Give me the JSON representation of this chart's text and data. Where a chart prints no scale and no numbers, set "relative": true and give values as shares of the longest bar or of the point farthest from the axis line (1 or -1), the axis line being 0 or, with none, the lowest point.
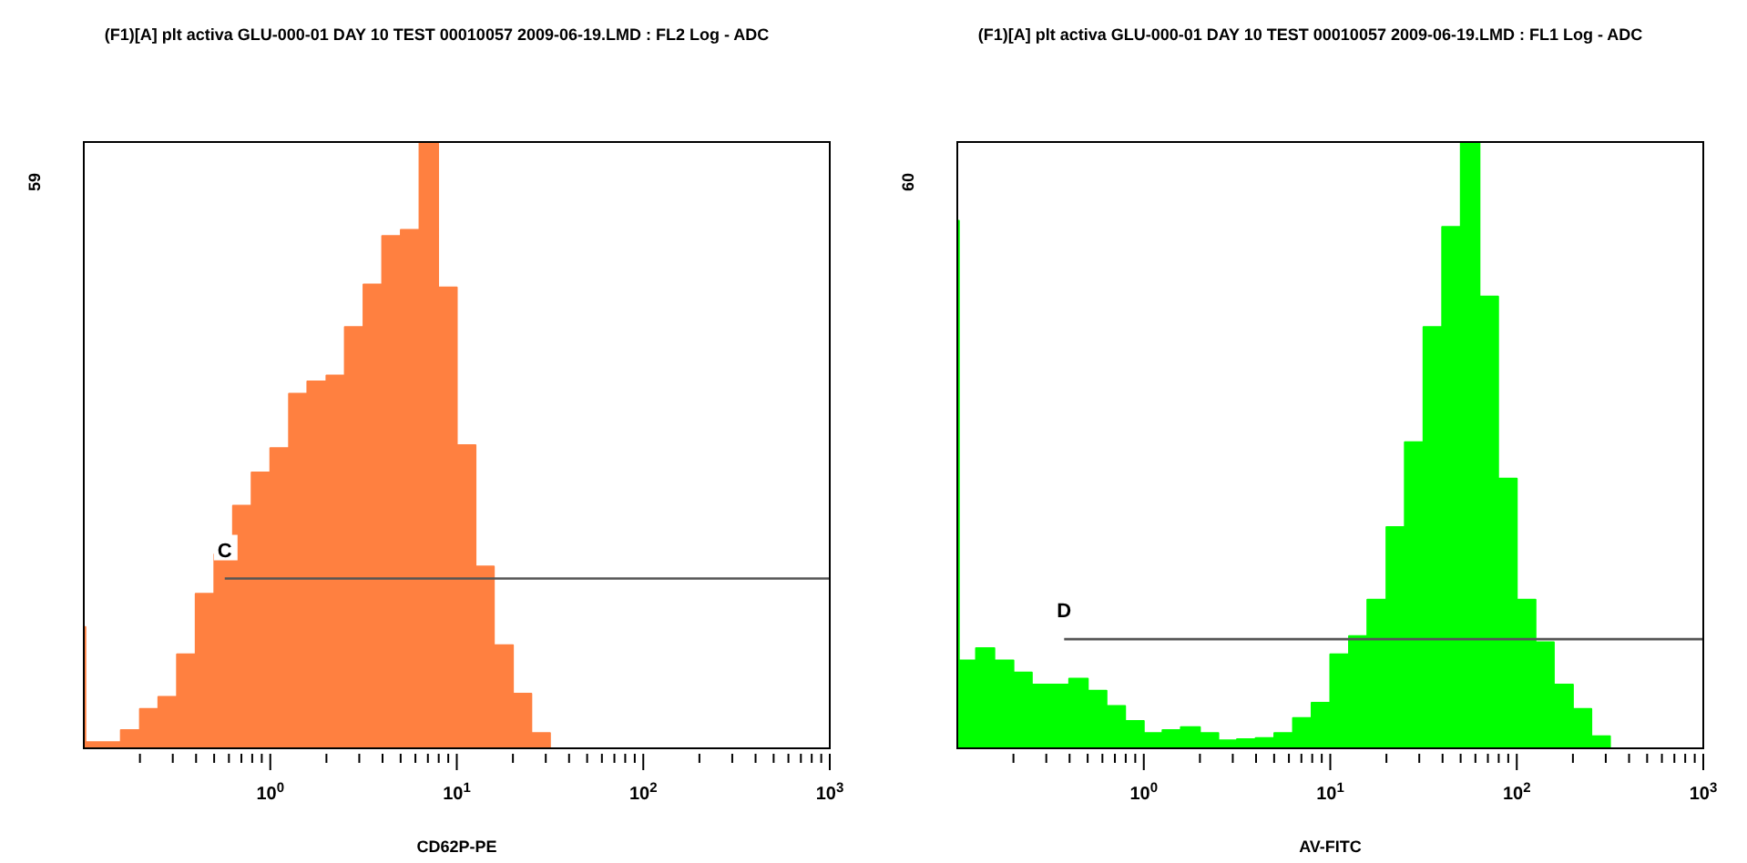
{
  "chart_data": [
    {
      "type": "area",
      "title": "(F1)[A] plt activa GLU-000-01 DAY 10 TEST 00010057 2009-06-19.LMD : FL2 Log - ADC",
      "xlabel": "CD62P-PE",
      "ylabel": "59",
      "relative": true,
      "log": "x",
      "series": [
        {
          "color": "#ff8040",
          "x": [
            0.1,
            0.102,
            0.126,
            0.158,
            0.2,
            0.251,
            0.316,
            0.398,
            0.501,
            0.631,
            0.794,
            1,
            1.26,
            1.58,
            2,
            2.51,
            3.16,
            3.98,
            5.01,
            6.31,
            7.94,
            10,
            12.6,
            15.8,
            20,
            25.1,
            31.6
          ],
          "values": [
            0.2,
            0.01,
            0.01,
            0.03,
            0.065,
            0.085,
            0.155,
            0.255,
            0.32,
            0.4,
            0.455,
            0.495,
            0.585,
            0.605,
            0.615,
            0.695,
            0.765,
            0.845,
            0.855,
            1.0,
            0.76,
            0.5,
            0.3,
            0.17,
            0.09,
            0.025,
            0
          ]
        },
        {
          "type": "line",
          "name": "C",
          "color": "#555555",
          "x": [
            0.57,
            1000
          ],
          "values": [
            0.28,
            0.28
          ]
        }
      ],
      "xlim": [
        0.1,
        1000
      ],
      "xticks": [
        {
          "value": 0.2,
          "label": null
        },
        {
          "value": 0.3,
          "label": null
        },
        {
          "value": 0.4,
          "label": null
        },
        {
          "value": 0.5,
          "label": null
        },
        {
          "value": 0.6,
          "label": null
        },
        {
          "value": 0.7,
          "label": null
        },
        {
          "value": 0.8,
          "label": null
        },
        {
          "value": 0.9,
          "label": null
        },
        {
          "value": 1,
          "label": "10$^{0}$"
        },
        {
          "value": 2,
          "label": null
        },
        {
          "value": 3,
          "label": null
        },
        {
          "value": 4,
          "label": null
        },
        {
          "value": 5,
          "label": null
        },
        {
          "value": 6,
          "label": null
        },
        {
          "value": 7,
          "label": null
        },
        {
          "value": 8,
          "label": null
        },
        {
          "value": 9,
          "label": null
        },
        {
          "value": 10,
          "label": "10$^{1}$"
        },
        {
          "value": 20,
          "label": null
        },
        {
          "value": 30,
          "label": null
        },
        {
          "value": 40,
          "label": null
        },
        {
          "value": 50,
          "label": null
        },
        {
          "value": 60,
          "label": null
        },
        {
          "value": 70,
          "label": null
        },
        {
          "value": 80,
          "label": null
        },
        {
          "value": 90,
          "label": null
        },
        {
          "value": 100,
          "label": "10$^{2}$"
        },
        {
          "value": 200,
          "label": null
        },
        {
          "value": 300,
          "label": null
        },
        {
          "value": 400,
          "label": null
        },
        {
          "value": 500,
          "label": null
        },
        {
          "value": 600,
          "label": null
        },
        {
          "value": 700,
          "label": null
        },
        {
          "value": 800,
          "label": null
        },
        {
          "value": 900,
          "label": null
        },
        {
          "value": 1000,
          "label": "10$^{3}$"
        }
      ]
    },
    {
      "type": "area",
      "title": "(F1)[A] plt activa GLU-000-01 DAY 10 TEST 00010057 2009-06-19.LMD : FL1 Log - ADC",
      "xlabel": "AV-FITC",
      "ylabel": "60",
      "relative": true,
      "log": "x",
      "series": [
        {
          "color": "#00ff00",
          "x": [
            0.1,
            0.102,
            0.126,
            0.158,
            0.2,
            0.251,
            0.316,
            0.398,
            0.501,
            0.631,
            0.794,
            1,
            1.26,
            1.58,
            2,
            2.51,
            3.16,
            3.98,
            5.01,
            6.31,
            7.94,
            10,
            12.6,
            15.8,
            20,
            25.1,
            31.6,
            39.8,
            50.1,
            63.1,
            79.4,
            100,
            126,
            158,
            200,
            251,
            316
          ],
          "values": [
            0.87,
            0.145,
            0.165,
            0.145,
            0.125,
            0.105,
            0.105,
            0.115,
            0.095,
            0.07,
            0.045,
            0.025,
            0.03,
            0.035,
            0.025,
            0.013,
            0.015,
            0.017,
            0.025,
            0.05,
            0.075,
            0.155,
            0.185,
            0.245,
            0.365,
            0.505,
            0.695,
            0.86,
            1.0,
            0.745,
            0.445,
            0.245,
            0.175,
            0.105,
            0.065,
            0.02,
            0
          ]
        },
        {
          "type": "line",
          "name": "D",
          "color": "#555555",
          "x": [
            0.374,
            1000
          ],
          "values": [
            0.18,
            0.18
          ]
        }
      ],
      "xlim": [
        0.1,
        1000
      ],
      "xticks": [
        {
          "value": 0.2,
          "label": null
        },
        {
          "value": 0.3,
          "label": null
        },
        {
          "value": 0.4,
          "label": null
        },
        {
          "value": 0.5,
          "label": null
        },
        {
          "value": 0.6,
          "label": null
        },
        {
          "value": 0.7,
          "label": null
        },
        {
          "value": 0.8,
          "label": null
        },
        {
          "value": 0.9,
          "label": null
        },
        {
          "value": 1,
          "label": "10$^{0}$"
        },
        {
          "value": 2,
          "label": null
        },
        {
          "value": 3,
          "label": null
        },
        {
          "value": 4,
          "label": null
        },
        {
          "value": 5,
          "label": null
        },
        {
          "value": 6,
          "label": null
        },
        {
          "value": 7,
          "label": null
        },
        {
          "value": 8,
          "label": null
        },
        {
          "value": 9,
          "label": null
        },
        {
          "value": 10,
          "label": "10$^{1}$"
        },
        {
          "value": 20,
          "label": null
        },
        {
          "value": 30,
          "label": null
        },
        {
          "value": 40,
          "label": null
        },
        {
          "value": 50,
          "label": null
        },
        {
          "value": 60,
          "label": null
        },
        {
          "value": 70,
          "label": null
        },
        {
          "value": 80,
          "label": null
        },
        {
          "value": 90,
          "label": null
        },
        {
          "value": 100,
          "label": "10$^{2}$"
        },
        {
          "value": 200,
          "label": null
        },
        {
          "value": 300,
          "label": null
        },
        {
          "value": 400,
          "label": null
        },
        {
          "value": 500,
          "label": null
        },
        {
          "value": 600,
          "label": null
        },
        {
          "value": 700,
          "label": null
        },
        {
          "value": 800,
          "label": null
        },
        {
          "value": 900,
          "label": null
        },
        {
          "value": 1000,
          "label": "10$^{3}$"
        }
      ]
    }
  ]
}
